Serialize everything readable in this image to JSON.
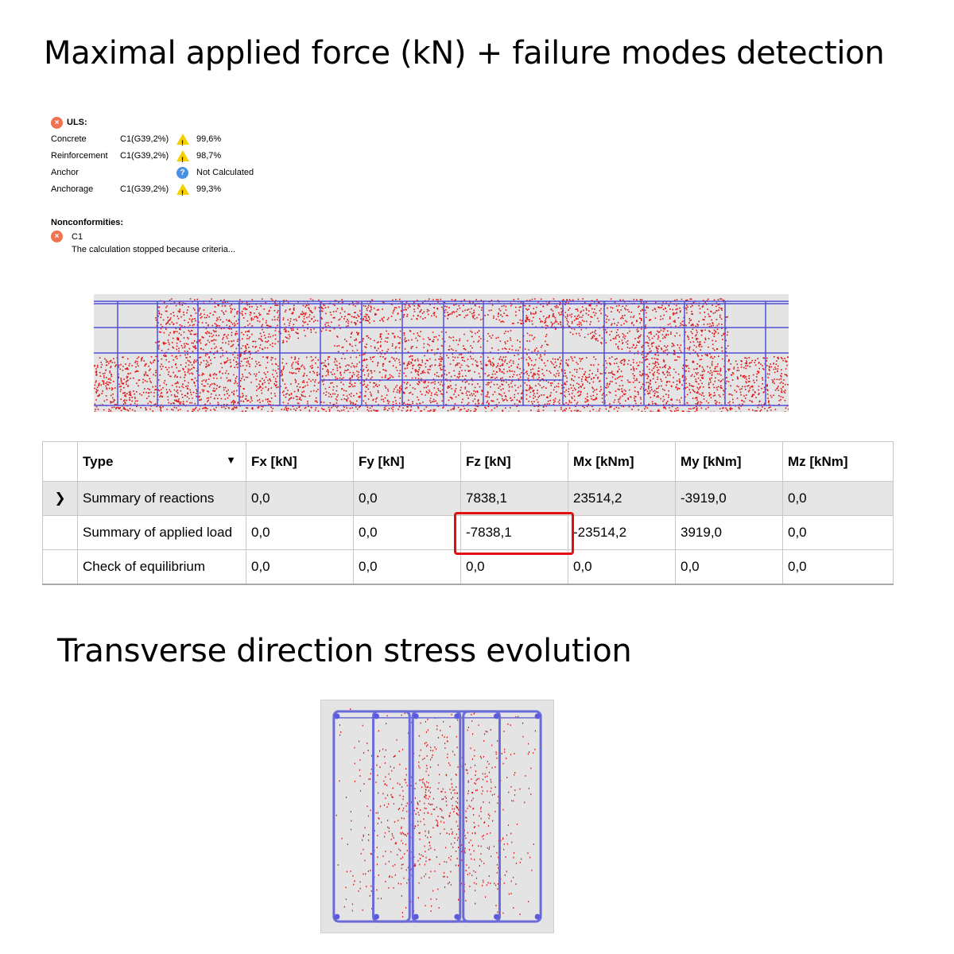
{
  "heading_main": "Maximal applied force (kN) + failure modes detection",
  "heading_transverse": "Transverse direction stress evolution",
  "uls": {
    "title": "ULS:",
    "rows": [
      {
        "label": "Concrete",
        "combo": "C1(G39,2%)",
        "value": "99,6%",
        "icon": "warning-icon"
      },
      {
        "label": "Reinforcement",
        "combo": "C1(G39,2%)",
        "value": "98,7%",
        "icon": "warning-icon"
      },
      {
        "label": "Anchor",
        "combo": "",
        "value": "Not Calculated",
        "icon": "question-icon"
      },
      {
        "label": "Anchorage",
        "combo": "C1(G39,2%)",
        "value": "99,3%",
        "icon": "warning-icon"
      }
    ]
  },
  "nonconformities": {
    "title": "Nonconformities:",
    "item": "C1",
    "message": "The calculation stopped because criteria..."
  },
  "table": {
    "headers": [
      "Type",
      "Fx [kN]",
      "Fy [kN]",
      "Fz [kN]",
      "Mx [kNm]",
      "My [kNm]",
      "Mz [kNm]"
    ],
    "rows": [
      {
        "type": "Summary of reactions",
        "values": [
          "0,0",
          "0,0",
          "7838,1",
          "23514,2",
          "-3919,0",
          "0,0"
        ]
      },
      {
        "type": "Summary of applied load",
        "values": [
          "0,0",
          "0,0",
          "-7838,1",
          "-23514,2",
          "3919,0",
          "0,0"
        ]
      },
      {
        "type": "Check of equilibrium",
        "values": [
          "0,0",
          "0,0",
          "0,0",
          "0,0",
          "0,0",
          "0,0"
        ]
      }
    ]
  },
  "colors": {
    "crack": "#e01010",
    "rebar": "#4a4ae0",
    "highlight": "#e01010"
  }
}
